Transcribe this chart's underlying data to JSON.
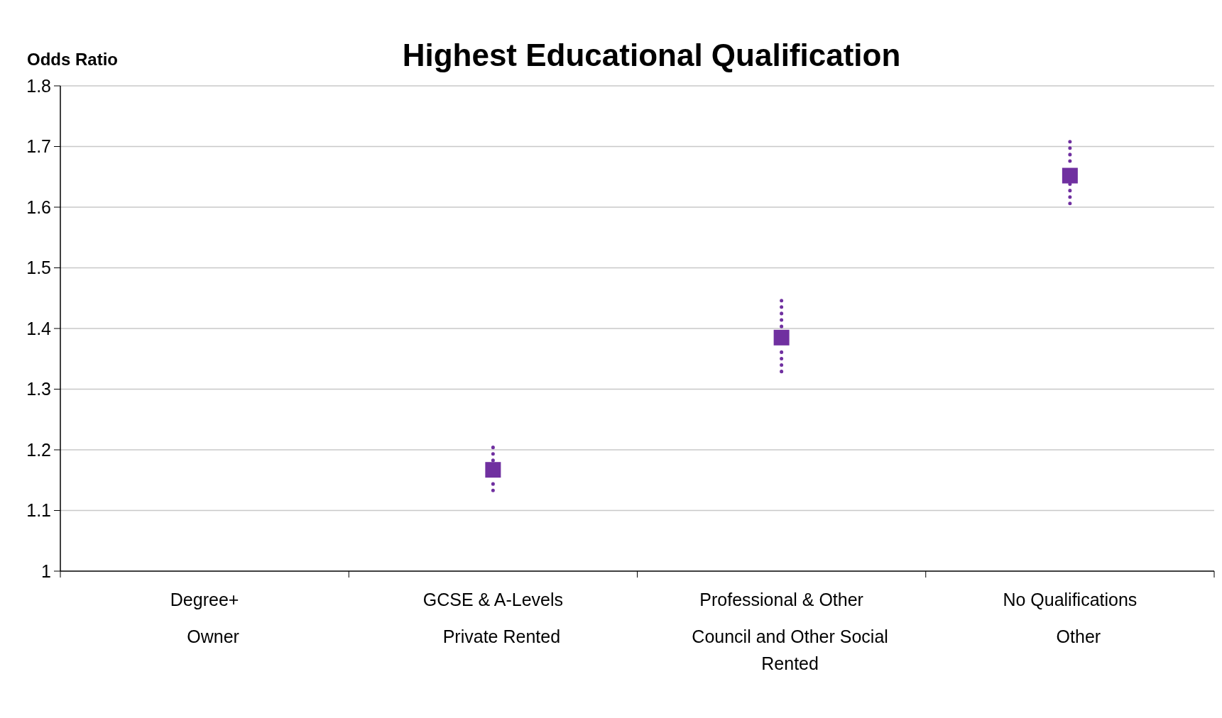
{
  "chart_data": {
    "type": "scatter",
    "title": "Highest Educational Qualification",
    "ylabel": "Odds Ratio",
    "categories": [
      "Degree+",
      "GCSE & A-Levels",
      "Professional & Other",
      "No Qualifications"
    ],
    "series": [
      {
        "color": "#7030a0",
        "values": [
          null,
          1.167,
          1.385,
          1.652
        ],
        "errors": [
          null,
          [
            1.133,
            1.204
          ],
          [
            1.329,
            1.446
          ],
          [
            1.606,
            1.708
          ]
        ]
      }
    ],
    "ylim": [
      1,
      1.8
    ],
    "yticks": [
      1,
      1.1,
      1.2,
      1.3,
      1.4,
      1.5,
      1.6,
      1.7,
      1.8
    ],
    "grid": "y",
    "marker": "square",
    "line_style": "dotted",
    "annotations": [
      "Owner",
      "Private Rented",
      "Council and Other Social Rented",
      "Other"
    ]
  }
}
